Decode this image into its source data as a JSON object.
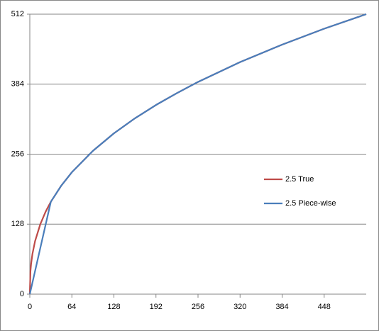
{
  "chart_data": {
    "type": "line",
    "x": [
      0,
      1,
      2,
      4,
      8,
      16,
      24,
      32,
      48,
      64,
      96,
      128,
      160,
      192,
      224,
      256,
      320,
      384,
      448,
      512
    ],
    "series": [
      {
        "name": "2.5 True",
        "color": "#be4b48",
        "values": [
          0,
          42.2,
          55.7,
          73.5,
          97.0,
          128.0,
          150.6,
          168.9,
          198.6,
          222.9,
          262.0,
          294.1,
          321.6,
          345.9,
          367.7,
          388.1,
          424.3,
          456.3,
          485.4,
          512
        ]
      },
      {
        "name": "2.5 Piece-wise",
        "color": "#4a7ebb",
        "values": [
          0,
          5.3,
          10.6,
          21.1,
          42.2,
          84.5,
          126.7,
          168.9,
          198.6,
          222.9,
          262.0,
          294.1,
          321.6,
          345.9,
          367.7,
          388.1,
          424.3,
          456.3,
          485.4,
          512
        ]
      }
    ],
    "xlim": [
      0,
      512
    ],
    "xticks": [
      0,
      64,
      128,
      192,
      256,
      320,
      384,
      448
    ],
    "ylim": [
      0,
      512
    ],
    "yticks": [
      0,
      128,
      256,
      384,
      512
    ],
    "grid": true,
    "legend": "right"
  }
}
